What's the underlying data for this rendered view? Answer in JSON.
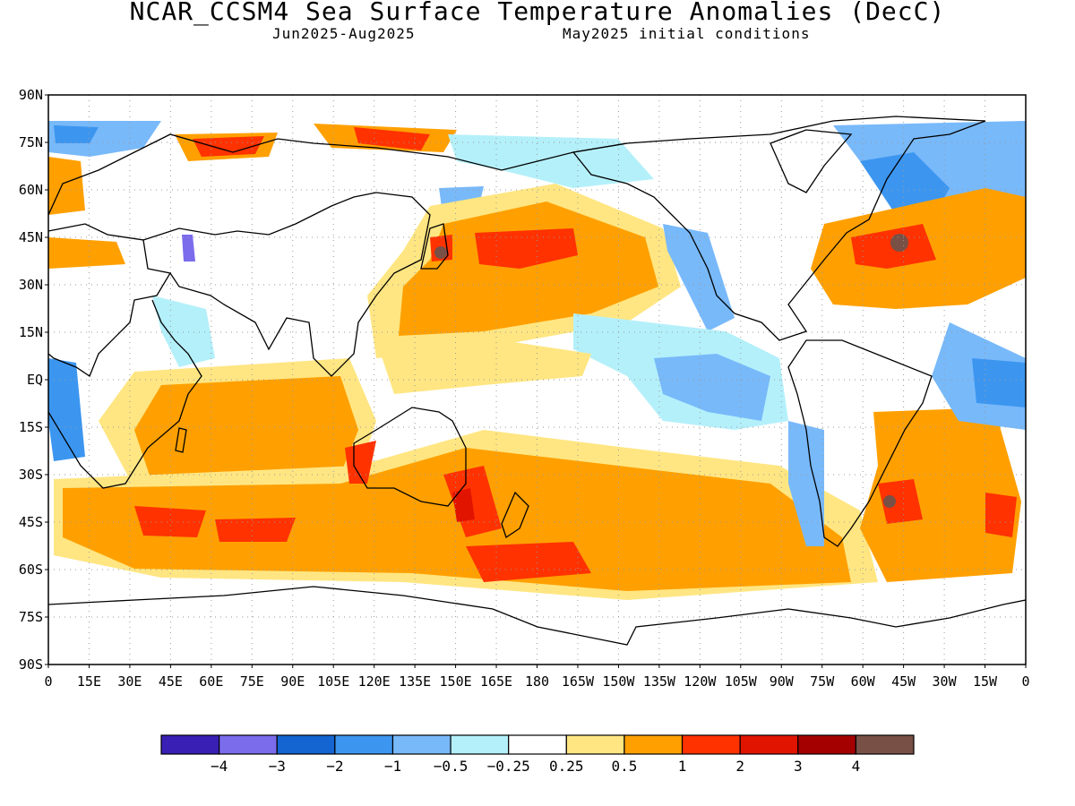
{
  "header": {
    "title": "NCAR_CCSM4 Sea Surface Temperature Anomalies (DecC)",
    "period": "Jun2025-Aug2025",
    "initial": "May2025 initial conditions"
  },
  "axes": {
    "lat_labels": [
      "90N",
      "75N",
      "60N",
      "45N",
      "30N",
      "15N",
      "EQ",
      "15S",
      "30S",
      "45S",
      "60S",
      "75S",
      "90S"
    ],
    "lon_labels": [
      "0",
      "15E",
      "30E",
      "45E",
      "60E",
      "75E",
      "90E",
      "105E",
      "120E",
      "135E",
      "150E",
      "165E",
      "180",
      "165W",
      "150W",
      "135W",
      "120W",
      "105W",
      "90W",
      "75W",
      "60W",
      "45W",
      "30W",
      "15W",
      "0"
    ]
  },
  "colorbar": {
    "colors": [
      "#3a1fb4",
      "#7b6cec",
      "#1464d2",
      "#3c96f0",
      "#78b9fa",
      "#b4f0fa",
      "#ffffff",
      "#ffe682",
      "#ffa000",
      "#ff3200",
      "#e11400",
      "#a50000",
      "#785046"
    ],
    "labels": [
      "-4",
      "-3",
      "-2",
      "-1",
      "-0.5",
      "-0.25",
      "0.25",
      "0.5",
      "1",
      "2",
      "3",
      "4"
    ]
  },
  "colors": {
    "land_outline": "#000000",
    "grid": "#9a9a9a",
    "frame": "#000000"
  }
}
